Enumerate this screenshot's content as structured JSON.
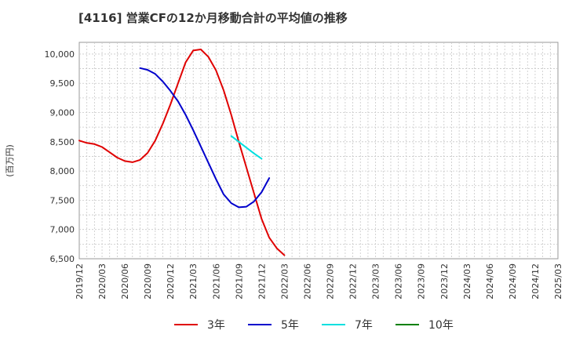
{
  "title": "[4116]  営業CFの12か月移動合計の平均値の推移",
  "chart_data": {
    "type": "line",
    "ylabel": "(百万円)",
    "xlabel": "",
    "ylim": [
      6500,
      10200
    ],
    "yticks": [
      6500,
      7000,
      7500,
      8000,
      8500,
      9000,
      9500,
      10000
    ],
    "ytick_labels": [
      "6,500",
      "7,000",
      "7,500",
      "8,000",
      "8,500",
      "9,000",
      "9,500",
      "10,000"
    ],
    "x_ticks": [
      "2019/12",
      "2020/03",
      "2020/06",
      "2020/09",
      "2020/12",
      "2021/03",
      "2021/06",
      "2021/09",
      "2021/12",
      "2022/03",
      "2022/06",
      "2022/09",
      "2022/12",
      "2023/03",
      "2023/06",
      "2023/09",
      "2023/12",
      "2024/03",
      "2024/06",
      "2024/09",
      "2024/12",
      "2025/03"
    ],
    "grid": true,
    "legend_position": "bottom",
    "series": [
      {
        "name": "3年",
        "color": "#e00000",
        "start_index": 0,
        "values": [
          8520,
          8480,
          8460,
          8410,
          8320,
          8230,
          8170,
          8150,
          8190,
          8310,
          8520,
          8810,
          9140,
          9500,
          9860,
          10060,
          10080,
          9950,
          9720,
          9380,
          8960,
          8500,
          8060,
          7620,
          7180,
          6860,
          6680,
          6560
        ]
      },
      {
        "name": "5年",
        "color": "#0000cc",
        "start_index": 8,
        "values": [
          9760,
          9730,
          9660,
          9530,
          9370,
          9190,
          8960,
          8700,
          8420,
          8140,
          7860,
          7600,
          7450,
          7380,
          7390,
          7480,
          7640,
          7880
        ]
      },
      {
        "name": "7年",
        "color": "#00e0e0",
        "start_index": 20,
        "values": [
          8600,
          8500,
          8400,
          8300,
          8210
        ]
      },
      {
        "name": "10年",
        "color": "#008000",
        "start_index": 0,
        "values": []
      }
    ]
  }
}
